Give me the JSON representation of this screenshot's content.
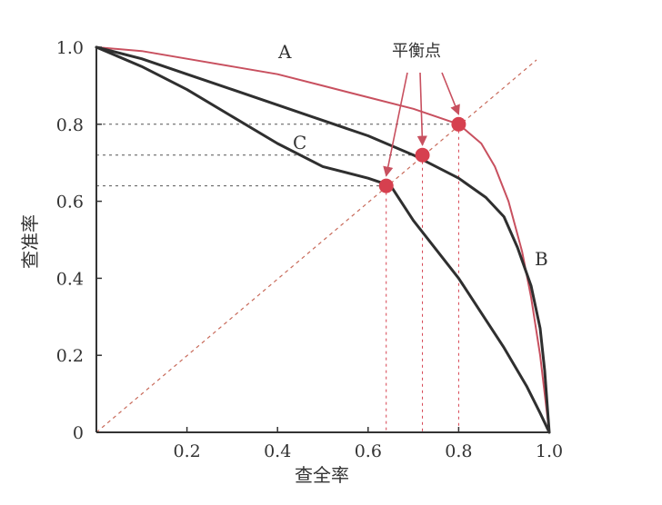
{
  "chart_data": {
    "type": "line",
    "xlabel": "查全率",
    "ylabel": "查准率",
    "xlim": [
      0,
      1
    ],
    "ylim": [
      0,
      1
    ],
    "xticks": [
      "0.2",
      "0.4",
      "0.6",
      "0.8",
      "1.0"
    ],
    "yticks": [
      "0",
      "0.2",
      "0.4",
      "0.6",
      "0.8",
      "1.0"
    ],
    "grid": false,
    "annotation": "平衡点",
    "colors": {
      "A": "#c8505f",
      "B": "#2f2f2f",
      "C": "#2f2f2f",
      "point": "#d6404f",
      "reference": "#c86a5a"
    },
    "series": [
      {
        "name": "A",
        "x": [
          0,
          0.1,
          0.2,
          0.3,
          0.4,
          0.5,
          0.6,
          0.7,
          0.8,
          0.85,
          0.88,
          0.91,
          0.94,
          0.96,
          0.98,
          0.99,
          1.0
        ],
        "y": [
          1.0,
          0.99,
          0.97,
          0.95,
          0.93,
          0.9,
          0.87,
          0.84,
          0.8,
          0.75,
          0.69,
          0.6,
          0.47,
          0.35,
          0.2,
          0.1,
          0.0
        ]
      },
      {
        "name": "B",
        "x": [
          0,
          0.1,
          0.2,
          0.3,
          0.4,
          0.5,
          0.6,
          0.7,
          0.8,
          0.86,
          0.9,
          0.93,
          0.96,
          0.98,
          0.99,
          1.0
        ],
        "y": [
          1.0,
          0.97,
          0.93,
          0.89,
          0.85,
          0.81,
          0.77,
          0.72,
          0.66,
          0.61,
          0.56,
          0.48,
          0.38,
          0.27,
          0.16,
          0.0
        ]
      },
      {
        "name": "C",
        "x": [
          0,
          0.1,
          0.2,
          0.3,
          0.4,
          0.5,
          0.6,
          0.65,
          0.7,
          0.8,
          0.85,
          0.9,
          0.95,
          0.98,
          1.0
        ],
        "y": [
          1.0,
          0.95,
          0.89,
          0.82,
          0.75,
          0.69,
          0.66,
          0.64,
          0.55,
          0.4,
          0.31,
          0.22,
          0.12,
          0.05,
          0.0
        ]
      }
    ],
    "break_even_points": [
      {
        "series": "C",
        "x": 0.64,
        "y": 0.64
      },
      {
        "series": "B",
        "x": 0.72,
        "y": 0.72
      },
      {
        "series": "A",
        "x": 0.8,
        "y": 0.8
      }
    ],
    "reference_line": {
      "x": [
        0,
        1
      ],
      "y": [
        0,
        1
      ]
    }
  }
}
